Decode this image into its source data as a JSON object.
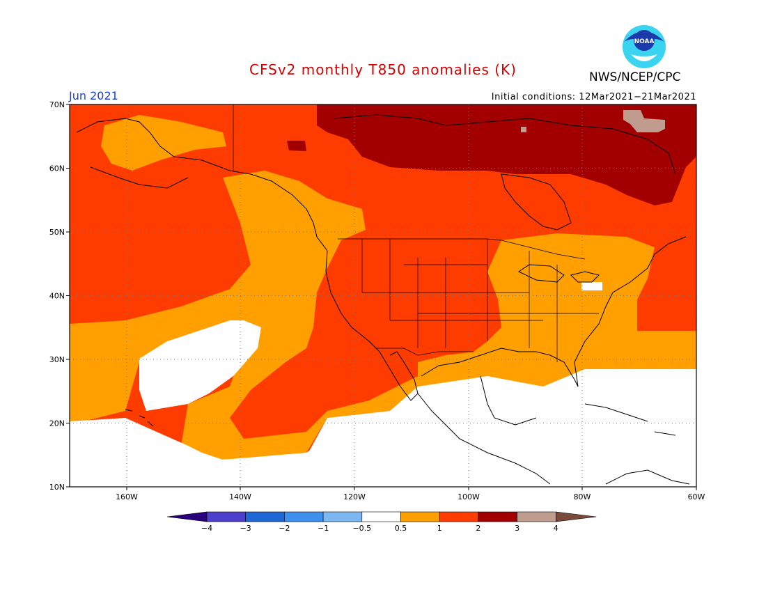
{
  "title": "CFSv2 monthly T850 anomalies (K)",
  "agency": "NWS/NCEP/CPC",
  "logo_text": "NOAA",
  "month_label": "Jun 2021",
  "initial_conditions": "Initial conditions: 12Mar2021−21Mar2021",
  "colors": {
    "title": "#d40000",
    "month": "#1a3fd4"
  },
  "map": {
    "lat_labels": [
      "70N",
      "60N",
      "50N",
      "40N",
      "30N",
      "20N",
      "10N"
    ],
    "lon_labels": [
      "160W",
      "140W",
      "120W",
      "100W",
      "80W",
      "60W"
    ]
  },
  "colorbar": {
    "labels": [
      "−4",
      "−3",
      "−2",
      "−1",
      "−0.5",
      "0.5",
      "1",
      "2",
      "3",
      "4"
    ],
    "colors": [
      "#2a007f",
      "#4d3fcc",
      "#1f66d6",
      "#3d8ff0",
      "#7db7f2",
      "#ffffff",
      "#ff9f00",
      "#ff3c00",
      "#a20000",
      "#c09c8e",
      "#7a4a3a"
    ]
  }
}
